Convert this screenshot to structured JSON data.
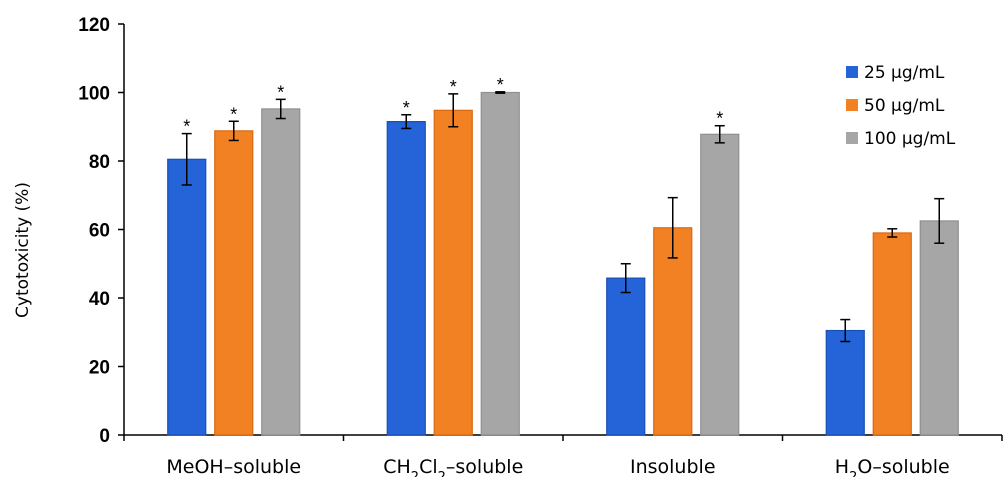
{
  "chart_data": {
    "type": "bar",
    "title": "",
    "xlabel": "",
    "ylabel": "Cytotoxicity (%)",
    "ylim": [
      0,
      120
    ],
    "yticks": [
      "0",
      "20",
      "40",
      "60",
      "80",
      "100",
      "120"
    ],
    "categories": [
      {
        "label": "MeOH–soluble"
      },
      {
        "label": "CH",
        "sub1": "2",
        "mid": "Cl",
        "sub2": "2",
        "tail": "–soluble"
      },
      {
        "label": "Insoluble"
      },
      {
        "label": "H",
        "sub1": "2",
        "mid": "O–soluble"
      }
    ],
    "series": [
      {
        "name": "25 µg/mL",
        "color": "#2563d8",
        "values": [
          80.5,
          91.5,
          45.8,
          30.5
        ],
        "errors": [
          7.5,
          2.0,
          4.2,
          3.2
        ],
        "significant": [
          true,
          true,
          false,
          false
        ]
      },
      {
        "name": "50 µg/mL",
        "color": "#f28124",
        "values": [
          88.8,
          94.8,
          60.5,
          59.0
        ],
        "errors": [
          2.8,
          4.8,
          8.8,
          1.2
        ],
        "significant": [
          true,
          true,
          false,
          false
        ]
      },
      {
        "name": "100 µg/mL",
        "color": "#a6a6a6",
        "values": [
          95.2,
          100.0,
          87.8,
          62.5
        ],
        "errors": [
          2.8,
          0.2,
          2.5,
          6.5
        ],
        "significant": [
          true,
          true,
          true,
          false
        ]
      }
    ],
    "significance_marker": "*",
    "grid": false,
    "legend_position": "top-right"
  }
}
